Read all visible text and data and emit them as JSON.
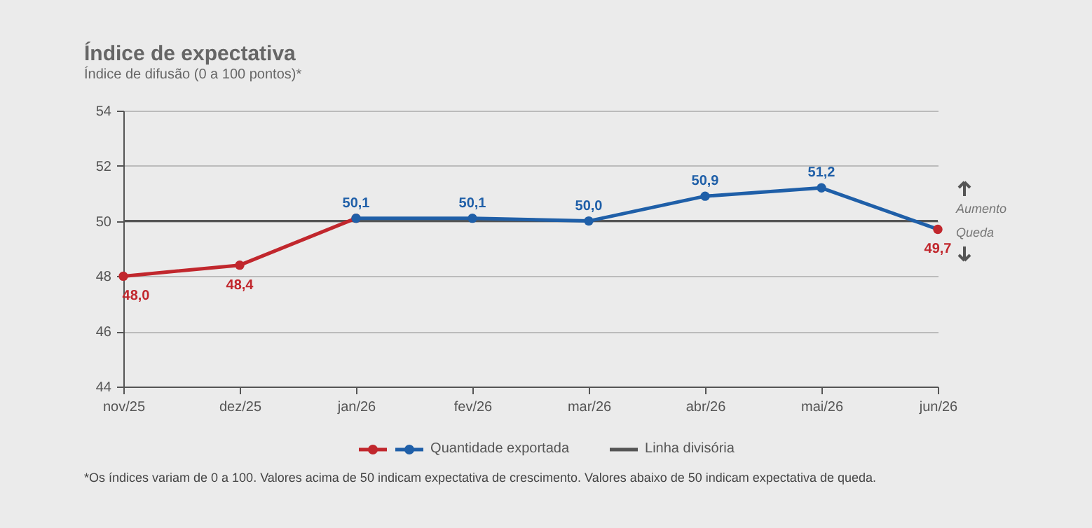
{
  "chart_data": {
    "type": "line",
    "title": "Índice de expectativa",
    "subtitle": "Índice de difusão (0 a 100 pontos)*",
    "categories": [
      "nov/25",
      "dez/25",
      "jan/26",
      "fev/26",
      "mar/26",
      "abr/26",
      "mai/26",
      "jun/26"
    ],
    "series": [
      {
        "color": "#c1272d",
        "values": [
          48.0,
          48.4,
          50.1,
          null,
          null,
          null,
          null,
          null
        ],
        "value_labels": [
          "48,0",
          "48,4",
          null,
          null,
          null,
          null,
          null,
          null
        ]
      },
      {
        "name": "Quantidade exportada",
        "color": "#1f5fa8",
        "colors": [
          null,
          null,
          "#1f5fa8",
          "#1f5fa8",
          "#1f5fa8",
          "#1f5fa8",
          "#1f5fa8",
          "#c1272d"
        ],
        "values": [
          null,
          null,
          50.1,
          50.1,
          50.0,
          50.9,
          51.2,
          49.7
        ],
        "value_labels": [
          null,
          null,
          "50,1",
          "50,1",
          "50,0",
          "50,9",
          "51,2",
          "49,7"
        ]
      }
    ],
    "ylim": [
      44,
      54
    ],
    "yticks": [
      44,
      46,
      48,
      50,
      52,
      54
    ],
    "grid": "y",
    "marker": "circle",
    "legend": "bottom",
    "ref_lines": [
      {
        "axis": "y",
        "value": 50,
        "label": "Linha divisória",
        "color": "#555555"
      }
    ],
    "annotations": [
      "Aumento",
      "Queda",
      "*Os índices variam de 0 a 100. Valores acima de 50 indicam expectativa de crescimento. Valores abaixo de 50 indicam expectativa de queda."
    ]
  }
}
